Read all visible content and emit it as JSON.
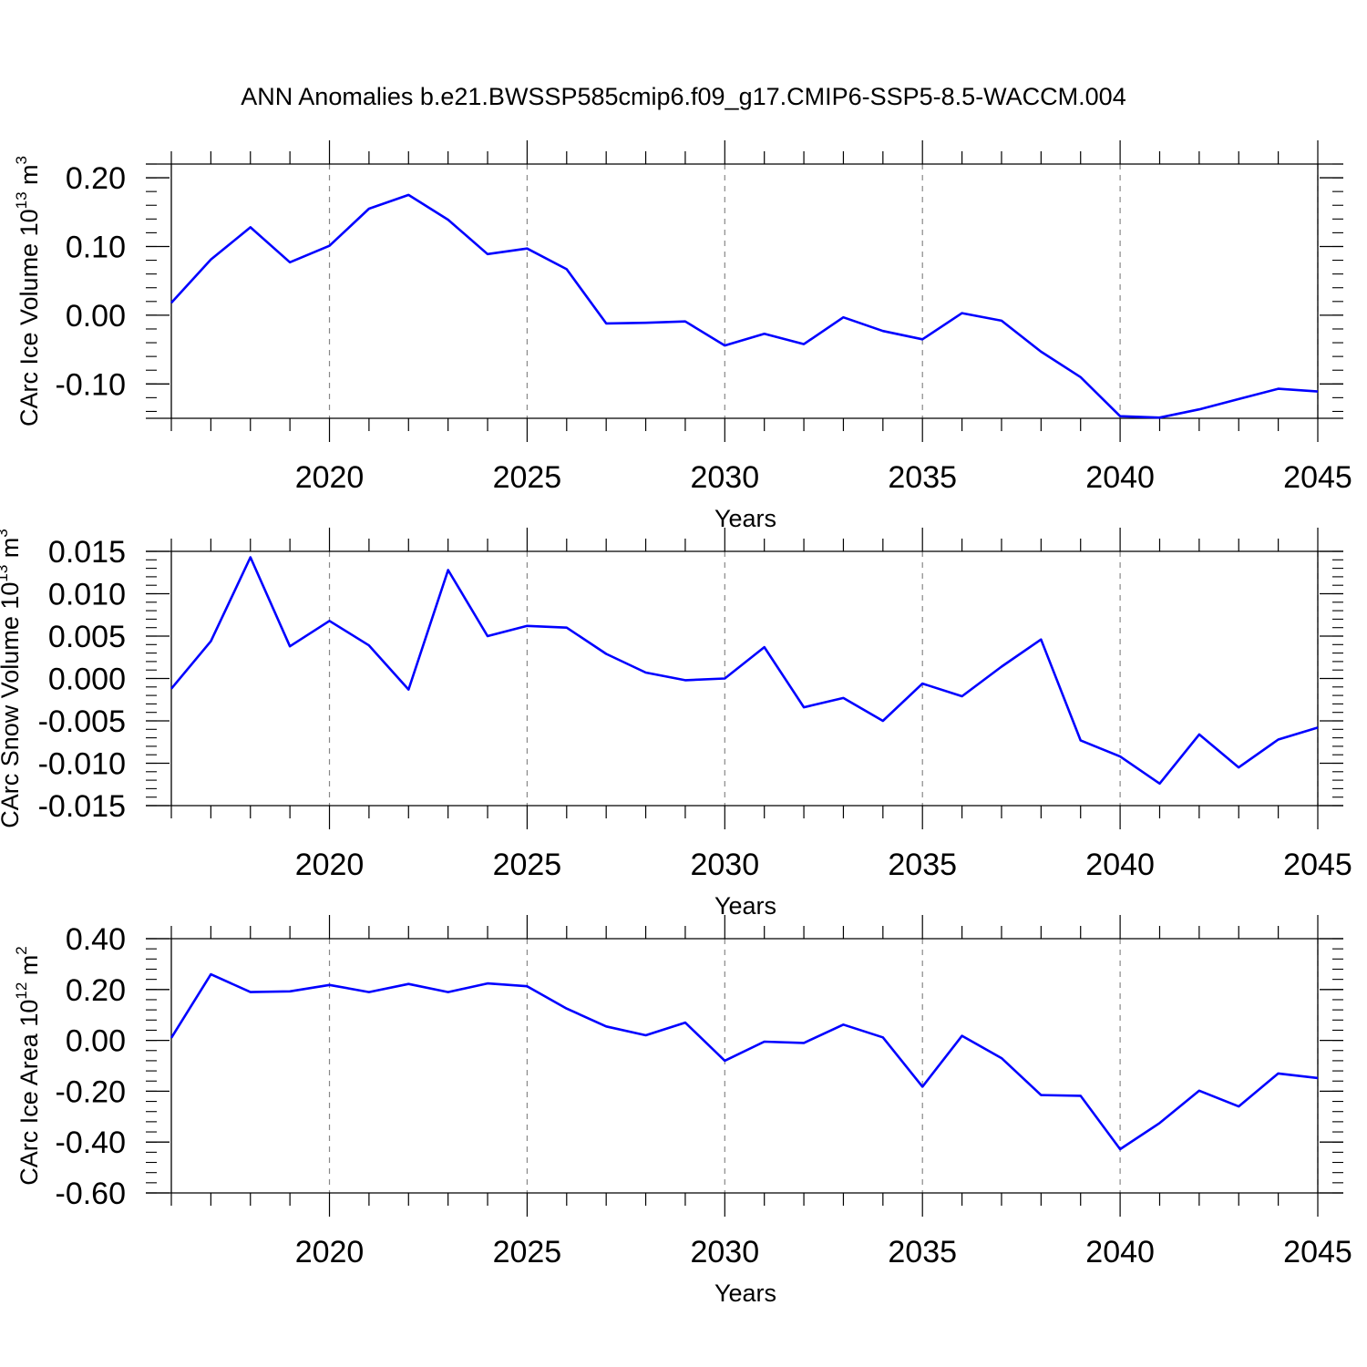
{
  "figure": {
    "title": "ANN Anomalies b.e21.BWSSP585cmip6.f09_g17.CMIP6-SSP5-8.5-WACCM.004",
    "line_color": "#0000ff",
    "grid_color": "#888888"
  },
  "chart_data": [
    {
      "type": "line",
      "xlabel": "Years",
      "ylabel": {
        "text": "CArc Ice Volume 10",
        "exponent": "13",
        "unit": " m",
        "unit_exponent": "3"
      },
      "xlim": [
        2016,
        2045
      ],
      "ylim": [
        -0.15,
        0.22
      ],
      "x_ticks": [
        2020,
        2025,
        2030,
        2035,
        2040,
        2045
      ],
      "y_ticks": [
        -0.1,
        0.0,
        0.1,
        0.2
      ],
      "y_tick_labels": [
        "-0.10",
        "0.00",
        "0.10",
        "0.20"
      ],
      "grid": "vertical dashed at major x ticks",
      "series": [
        {
          "x": [
            2016,
            2017,
            2018,
            2019,
            2020,
            2021,
            2022,
            2023,
            2024,
            2025,
            2026,
            2027,
            2028,
            2029,
            2030,
            2031,
            2032,
            2033,
            2034,
            2035,
            2036,
            2037,
            2038,
            2039,
            2040,
            2041,
            2042,
            2043,
            2044,
            2045
          ],
          "values": [
            0.018,
            0.081,
            0.128,
            0.077,
            0.101,
            0.155,
            0.175,
            0.139,
            0.089,
            0.097,
            0.067,
            -0.012,
            -0.011,
            -0.009,
            -0.044,
            -0.027,
            -0.042,
            -0.003,
            -0.023,
            -0.035,
            0.003,
            -0.008,
            -0.053,
            -0.09,
            -0.147,
            -0.149,
            -0.137,
            -0.122,
            -0.107,
            -0.111
          ]
        }
      ]
    },
    {
      "type": "line",
      "xlabel": "Years",
      "ylabel": {
        "text": "CArc Snow Volume 10",
        "exponent": "13",
        "unit": " m",
        "unit_exponent": "3"
      },
      "xlim": [
        2016,
        2045
      ],
      "ylim": [
        -0.015,
        0.015
      ],
      "x_ticks": [
        2020,
        2025,
        2030,
        2035,
        2040,
        2045
      ],
      "y_ticks": [
        -0.015,
        -0.01,
        -0.005,
        0.0,
        0.005,
        0.01,
        0.015
      ],
      "y_tick_labels": [
        "-0.015",
        "-0.010",
        "-0.005",
        "0.000",
        "0.005",
        "0.010",
        "0.015"
      ],
      "grid": "vertical dashed at major x ticks",
      "series": [
        {
          "x": [
            2016,
            2017,
            2018,
            2019,
            2020,
            2021,
            2022,
            2023,
            2024,
            2025,
            2026,
            2027,
            2028,
            2029,
            2030,
            2031,
            2032,
            2033,
            2034,
            2035,
            2036,
            2037,
            2038,
            2039,
            2040,
            2041,
            2042,
            2043,
            2044,
            2045
          ],
          "values": [
            -0.0012,
            0.0044,
            0.0143,
            0.0038,
            0.0068,
            0.0039,
            -0.0013,
            0.0128,
            0.005,
            0.0062,
            0.006,
            0.0029,
            0.0007,
            -0.0002,
            0.0,
            0.0037,
            -0.0034,
            -0.0023,
            -0.005,
            -0.0006,
            -0.0021,
            0.0014,
            0.0046,
            -0.0073,
            -0.0092,
            -0.0124,
            -0.0066,
            -0.0105,
            -0.0072,
            -0.0058
          ]
        }
      ]
    },
    {
      "type": "line",
      "xlabel": "Years",
      "ylabel": {
        "text": "CArc Ice Area 10",
        "exponent": "12",
        "unit": " m",
        "unit_exponent": "2"
      },
      "xlim": [
        2016,
        2045
      ],
      "ylim": [
        -0.6,
        0.4
      ],
      "x_ticks": [
        2020,
        2025,
        2030,
        2035,
        2040,
        2045
      ],
      "y_ticks": [
        -0.6,
        -0.4,
        -0.2,
        0.0,
        0.2,
        0.4
      ],
      "y_tick_labels": [
        "-0.60",
        "-0.40",
        "-0.20",
        "0.00",
        "0.20",
        "0.40"
      ],
      "grid": "vertical dashed at major x ticks",
      "series": [
        {
          "x": [
            2016,
            2017,
            2018,
            2019,
            2020,
            2021,
            2022,
            2023,
            2024,
            2025,
            2026,
            2027,
            2028,
            2029,
            2030,
            2031,
            2032,
            2033,
            2034,
            2035,
            2036,
            2037,
            2038,
            2039,
            2040,
            2041,
            2042,
            2043,
            2044,
            2045
          ],
          "values": [
            0.01,
            0.26,
            0.19,
            0.193,
            0.218,
            0.19,
            0.222,
            0.19,
            0.224,
            0.213,
            0.125,
            0.055,
            0.02,
            0.07,
            -0.08,
            -0.005,
            -0.01,
            0.062,
            0.012,
            -0.182,
            0.018,
            -0.07,
            -0.215,
            -0.218,
            -0.428,
            -0.325,
            -0.198,
            -0.26,
            -0.13,
            -0.148
          ]
        }
      ]
    }
  ]
}
